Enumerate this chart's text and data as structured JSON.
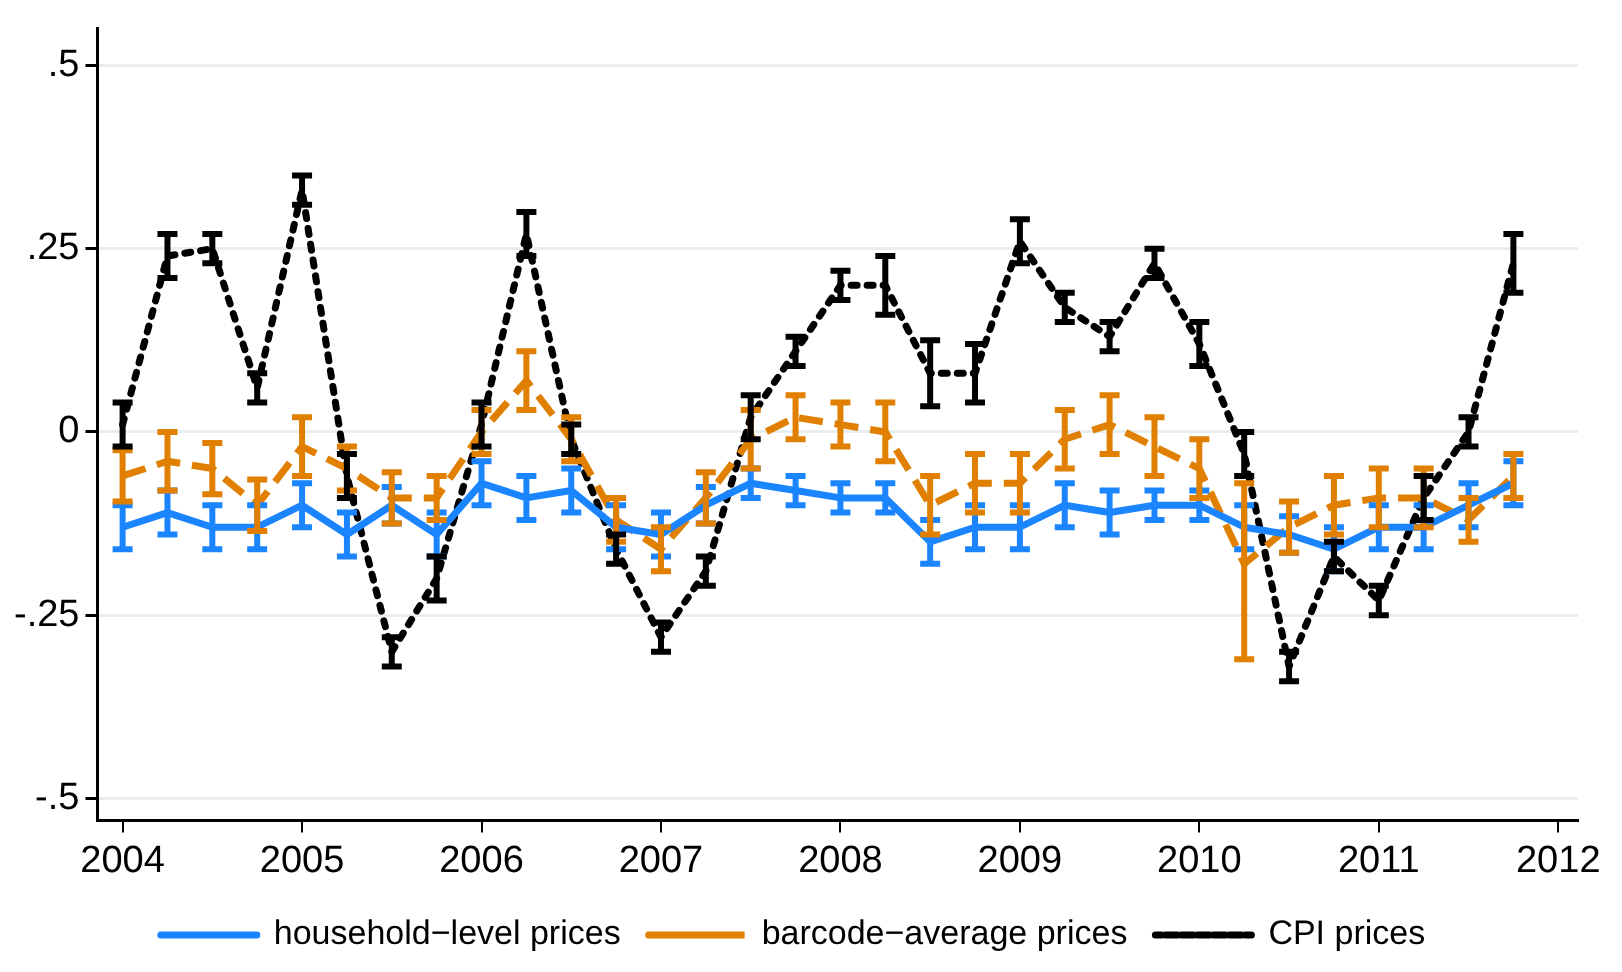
{
  "chart_data": {
    "type": "line",
    "x": [
      2004,
      2004.25,
      2004.5,
      2004.75,
      2005,
      2005.25,
      2005.5,
      2005.75,
      2006,
      2006.25,
      2006.5,
      2006.75,
      2007,
      2007.25,
      2007.5,
      2007.75,
      2008,
      2008.25,
      2008.5,
      2008.75,
      2009,
      2009.25,
      2009.5,
      2009.75,
      2010,
      2010.25,
      2010.5,
      2010.75,
      2011,
      2011.25,
      2011.5,
      2011.75
    ],
    "series": [
      {
        "name": "household−level prices",
        "color": "#1a85ff",
        "line_style": "solid",
        "values": [
          -0.13,
          -0.11,
          -0.13,
          -0.13,
          -0.1,
          -0.14,
          -0.1,
          -0.14,
          -0.07,
          -0.09,
          -0.08,
          -0.13,
          -0.14,
          -0.1,
          -0.07,
          -0.08,
          -0.09,
          -0.09,
          -0.15,
          -0.13,
          -0.13,
          -0.1,
          -0.11,
          -0.1,
          -0.1,
          -0.13,
          -0.14,
          -0.16,
          -0.13,
          -0.13,
          -0.1,
          -0.07
        ],
        "errors": [
          0.03,
          0.03,
          0.03,
          0.03,
          0.03,
          0.03,
          0.025,
          0.03,
          0.03,
          0.03,
          0.03,
          0.03,
          0.03,
          0.025,
          0.02,
          0.02,
          0.02,
          0.02,
          0.03,
          0.03,
          0.03,
          0.03,
          0.03,
          0.02,
          0.02,
          0.03,
          0.025,
          0.03,
          0.03,
          0.03,
          0.03,
          0.03
        ]
      },
      {
        "name": "barcode−average prices",
        "color": "#e07f00",
        "line_style": "dashed",
        "values": [
          -0.06,
          -0.04,
          -0.05,
          -0.1,
          -0.02,
          -0.05,
          -0.09,
          -0.09,
          0.0,
          0.07,
          -0.01,
          -0.12,
          -0.16,
          -0.09,
          -0.01,
          0.02,
          0.01,
          0.0,
          -0.1,
          -0.07,
          -0.07,
          -0.01,
          0.01,
          -0.02,
          -0.05,
          -0.18,
          -0.13,
          -0.1,
          -0.09,
          -0.09,
          -0.12,
          -0.06
        ],
        "errors": [
          0.035,
          0.04,
          0.035,
          0.035,
          0.04,
          0.03,
          0.035,
          0.03,
          0.03,
          0.04,
          0.03,
          0.03,
          0.03,
          0.035,
          0.04,
          0.03,
          0.03,
          0.04,
          0.04,
          0.04,
          0.04,
          0.04,
          0.04,
          0.04,
          0.04,
          [
            -0.31,
            -0.07
          ],
          0.035,
          0.04,
          0.04,
          0.04,
          0.03,
          0.03
        ]
      },
      {
        "name": "CPI prices",
        "color": "#000000",
        "line_style": "dotted",
        "values": [
          0.01,
          0.24,
          0.25,
          0.06,
          0.33,
          -0.06,
          -0.3,
          -0.2,
          0.01,
          0.27,
          -0.01,
          -0.16,
          -0.28,
          -0.19,
          0.02,
          0.11,
          0.2,
          0.2,
          0.08,
          0.08,
          0.26,
          0.17,
          0.13,
          0.23,
          0.12,
          -0.03,
          -0.32,
          -0.17,
          -0.23,
          -0.09,
          0.0,
          0.23
        ],
        "errors": [
          0.03,
          0.03,
          0.02,
          0.02,
          0.02,
          0.03,
          0.02,
          0.03,
          0.03,
          0.03,
          0.02,
          0.02,
          0.02,
          0.02,
          0.03,
          0.02,
          0.02,
          0.04,
          0.045,
          0.04,
          0.03,
          0.02,
          0.02,
          0.02,
          0.03,
          0.03,
          0.02,
          0.02,
          0.02,
          0.03,
          0.02,
          0.04
        ]
      }
    ],
    "xlim": [
      2003.86,
      2012.11
    ],
    "xticks": [
      2004,
      2005,
      2006,
      2007,
      2008,
      2009,
      2010,
      2011,
      2012
    ],
    "ylim": [
      -0.53,
      0.55
    ],
    "yticks": [
      {
        "value": -0.5,
        "label": "-.5"
      },
      {
        "value": -0.25,
        "label": "-.25"
      },
      0,
      {
        "value": 0.25,
        "label": ".25"
      },
      {
        "value": 0.5,
        "label": ".5"
      }
    ],
    "grid": "y",
    "legend": "bottom"
  }
}
